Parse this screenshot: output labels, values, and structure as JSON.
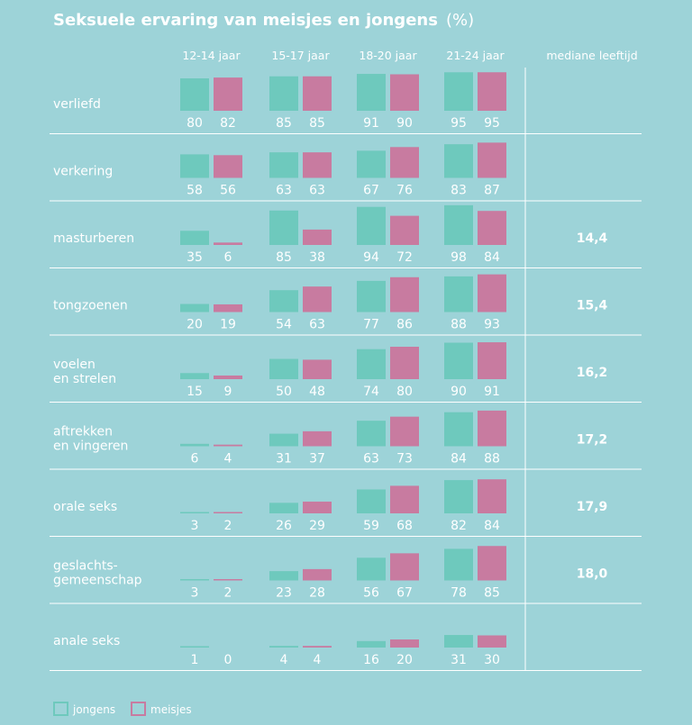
{
  "chart_data": {
    "type": "bar",
    "title": "Seksuele ervaring van meisjes en jongens",
    "title_unit": "(%)",
    "age_groups": [
      "12-14 jaar",
      "15-17 jaar",
      "18-20 jaar",
      "21-24 jaar"
    ],
    "median_header": "mediane leeftijd",
    "series_names": [
      "jongens",
      "meisjes"
    ],
    "colors": {
      "jongens": "#6ec9bd",
      "meisjes": "#c87ba0",
      "background": "#9dd3d8",
      "divider": "#ffffff"
    },
    "ylim": [
      0,
      100
    ],
    "rows": [
      {
        "label": [
          "verliefd"
        ],
        "jongens": [
          80,
          85,
          91,
          95
        ],
        "meisjes": [
          82,
          85,
          90,
          95
        ],
        "median": ""
      },
      {
        "label": [
          "verkering"
        ],
        "jongens": [
          58,
          63,
          67,
          83
        ],
        "meisjes": [
          56,
          63,
          76,
          87
        ],
        "median": ""
      },
      {
        "label": [
          "masturberen"
        ],
        "jongens": [
          35,
          85,
          94,
          98
        ],
        "meisjes": [
          6,
          38,
          72,
          84
        ],
        "median": "14,4"
      },
      {
        "label": [
          "tongzoenen"
        ],
        "jongens": [
          20,
          54,
          77,
          88
        ],
        "meisjes": [
          19,
          63,
          86,
          93
        ],
        "median": "15,4"
      },
      {
        "label": [
          "voelen",
          "en strelen"
        ],
        "jongens": [
          15,
          50,
          74,
          90
        ],
        "meisjes": [
          9,
          48,
          80,
          91
        ],
        "median": "16,2"
      },
      {
        "label": [
          "aftrekken",
          "en vingeren"
        ],
        "jongens": [
          6,
          31,
          63,
          84
        ],
        "meisjes": [
          4,
          37,
          73,
          88
        ],
        "median": "17,2"
      },
      {
        "label": [
          "orale seks"
        ],
        "jongens": [
          3,
          26,
          59,
          82
        ],
        "meisjes": [
          2,
          29,
          68,
          84
        ],
        "median": "17,9"
      },
      {
        "label": [
          "geslachts-",
          "gemeenschap"
        ],
        "jongens": [
          3,
          23,
          56,
          78
        ],
        "meisjes": [
          2,
          28,
          67,
          85
        ],
        "median": "18,0"
      },
      {
        "label": [
          "anale seks"
        ],
        "jongens": [
          1,
          4,
          16,
          31
        ],
        "meisjes": [
          0,
          4,
          20,
          30
        ],
        "median": ""
      }
    ]
  }
}
